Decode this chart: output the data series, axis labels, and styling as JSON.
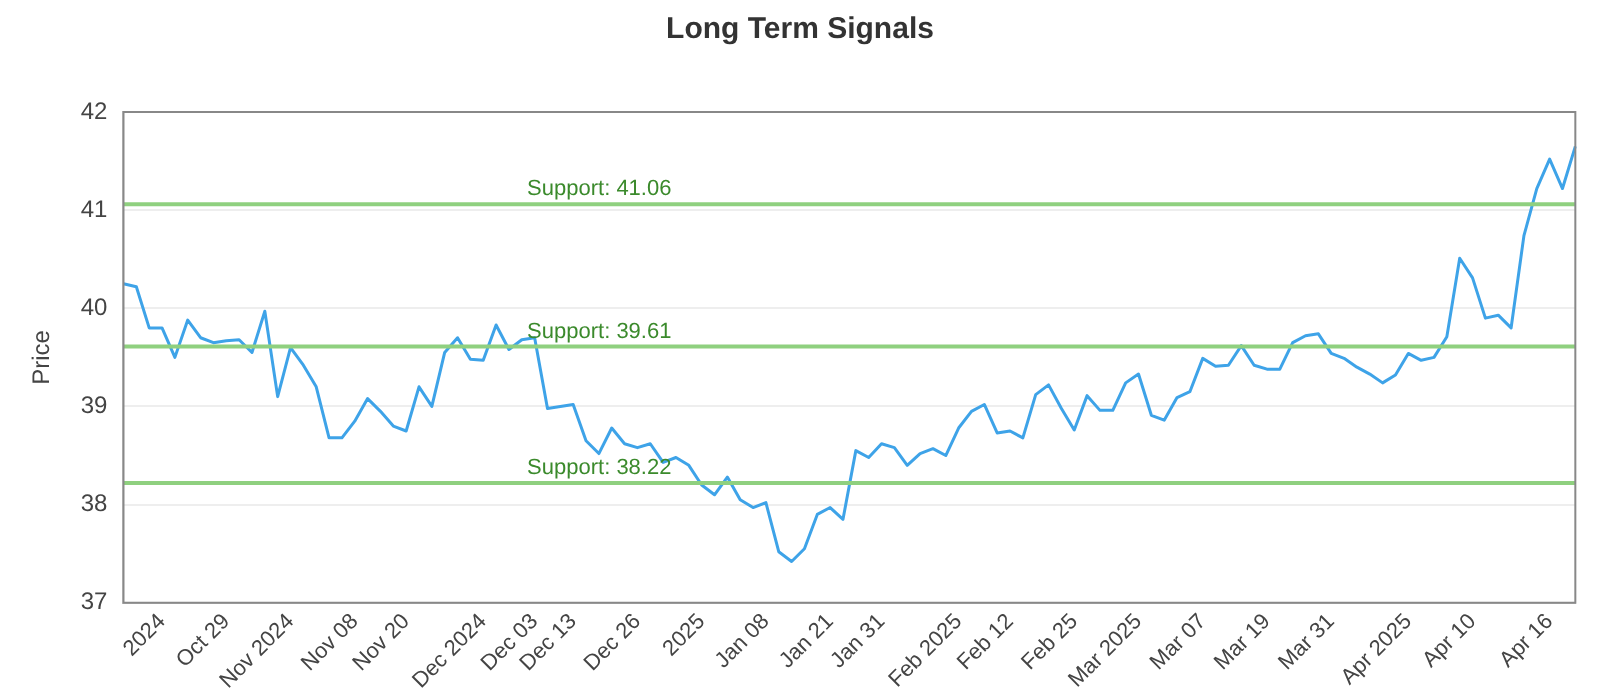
{
  "chart_data": {
    "type": "line",
    "title": "Long Term Signals",
    "ylabel": "Price",
    "categories": [
      null,
      null,
      null,
      "2024",
      null,
      null,
      null,
      null,
      "Oct 29",
      null,
      null,
      null,
      null,
      "Nov 2024",
      null,
      null,
      null,
      null,
      "Nov 08",
      null,
      null,
      null,
      "Nov 20",
      null,
      null,
      null,
      null,
      null,
      "Dec 2024",
      null,
      null,
      null,
      "Dec 03",
      null,
      null,
      "Dec 13",
      null,
      null,
      null,
      null,
      "Dec 26",
      null,
      null,
      null,
      null,
      "2025",
      null,
      null,
      null,
      null,
      "Jan 08",
      null,
      null,
      null,
      null,
      "Jan 21",
      null,
      null,
      null,
      "Jan 31",
      null,
      null,
      null,
      null,
      null,
      "Feb 2025",
      null,
      null,
      null,
      "Feb 12",
      null,
      null,
      null,
      null,
      "Feb 25",
      null,
      null,
      null,
      null,
      "Mar 2025",
      null,
      null,
      null,
      null,
      "Mar 07",
      null,
      null,
      null,
      null,
      "Mar 19",
      null,
      null,
      null,
      null,
      "Mar 31",
      null,
      null,
      null,
      null,
      null,
      "Apr 2025",
      null,
      null,
      null,
      null,
      "Apr 10",
      null,
      null,
      null,
      null,
      null,
      "Apr 16",
      null,
      null
    ],
    "series": [
      {
        "color": "#3ea3e8",
        "values": [
          40.25,
          40.22,
          39.8,
          39.8,
          39.5,
          39.88,
          39.7,
          39.65,
          39.67,
          39.68,
          39.55,
          39.97,
          39.1,
          39.6,
          39.42,
          39.2,
          38.68,
          38.68,
          38.85,
          39.08,
          38.95,
          38.8,
          38.75,
          39.2,
          39.0,
          39.55,
          39.7,
          39.48,
          39.47,
          39.83,
          39.58,
          39.68,
          39.7,
          38.98,
          39.0,
          39.02,
          38.65,
          38.52,
          38.78,
          38.62,
          38.58,
          38.62,
          38.43,
          38.48,
          38.4,
          38.2,
          38.1,
          38.28,
          38.05,
          37.97,
          38.02,
          37.52,
          37.42,
          37.55,
          37.9,
          37.97,
          37.85,
          38.55,
          38.48,
          38.62,
          38.58,
          38.4,
          38.52,
          38.57,
          38.5,
          38.78,
          38.95,
          39.02,
          38.73,
          38.75,
          38.68,
          39.12,
          39.22,
          38.98,
          38.76,
          39.11,
          38.96,
          38.96,
          39.24,
          39.33,
          38.91,
          38.86,
          39.09,
          39.15,
          39.49,
          39.41,
          39.42,
          39.62,
          39.42,
          39.38,
          39.38,
          39.65,
          39.72,
          39.74,
          39.54,
          39.49,
          39.4,
          39.33,
          39.24,
          39.32,
          39.54,
          39.47,
          39.5,
          39.71,
          40.51,
          40.31,
          39.9,
          39.93,
          39.8,
          40.74,
          41.22,
          41.52,
          41.22,
          41.65
        ]
      }
    ],
    "ylim": [
      37,
      42
    ],
    "yticks": [
      37,
      38,
      39,
      40,
      41,
      42
    ],
    "grid": "y",
    "marker": "none",
    "line_style": "solid",
    "ref_lines": [
      {
        "axis": "y",
        "value": 41.06,
        "label": "Support: 41.06",
        "color": "#8fd07f"
      },
      {
        "axis": "y",
        "value": 39.61,
        "label": "Support: 39.61",
        "color": "#8fd07f"
      },
      {
        "axis": "y",
        "value": 38.22,
        "label": "Support: 38.22",
        "color": "#8fd07f"
      }
    ]
  }
}
